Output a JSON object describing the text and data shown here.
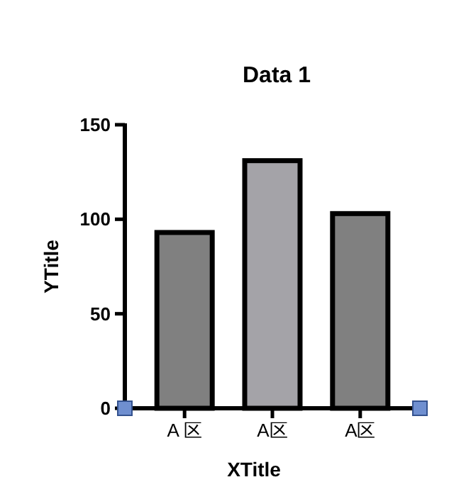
{
  "chart_data": {
    "type": "bar",
    "title": "Data 1",
    "xlabel": "XTitle",
    "ylabel": "YTitle",
    "categories": [
      "A 区",
      "A区",
      "A区"
    ],
    "values": [
      93,
      131,
      103
    ],
    "colors": [
      "#808080",
      "#a4a3a8",
      "#808080"
    ],
    "ylim": [
      0,
      150
    ],
    "yticks": [
      0,
      50,
      100,
      150
    ],
    "grid": false
  }
}
